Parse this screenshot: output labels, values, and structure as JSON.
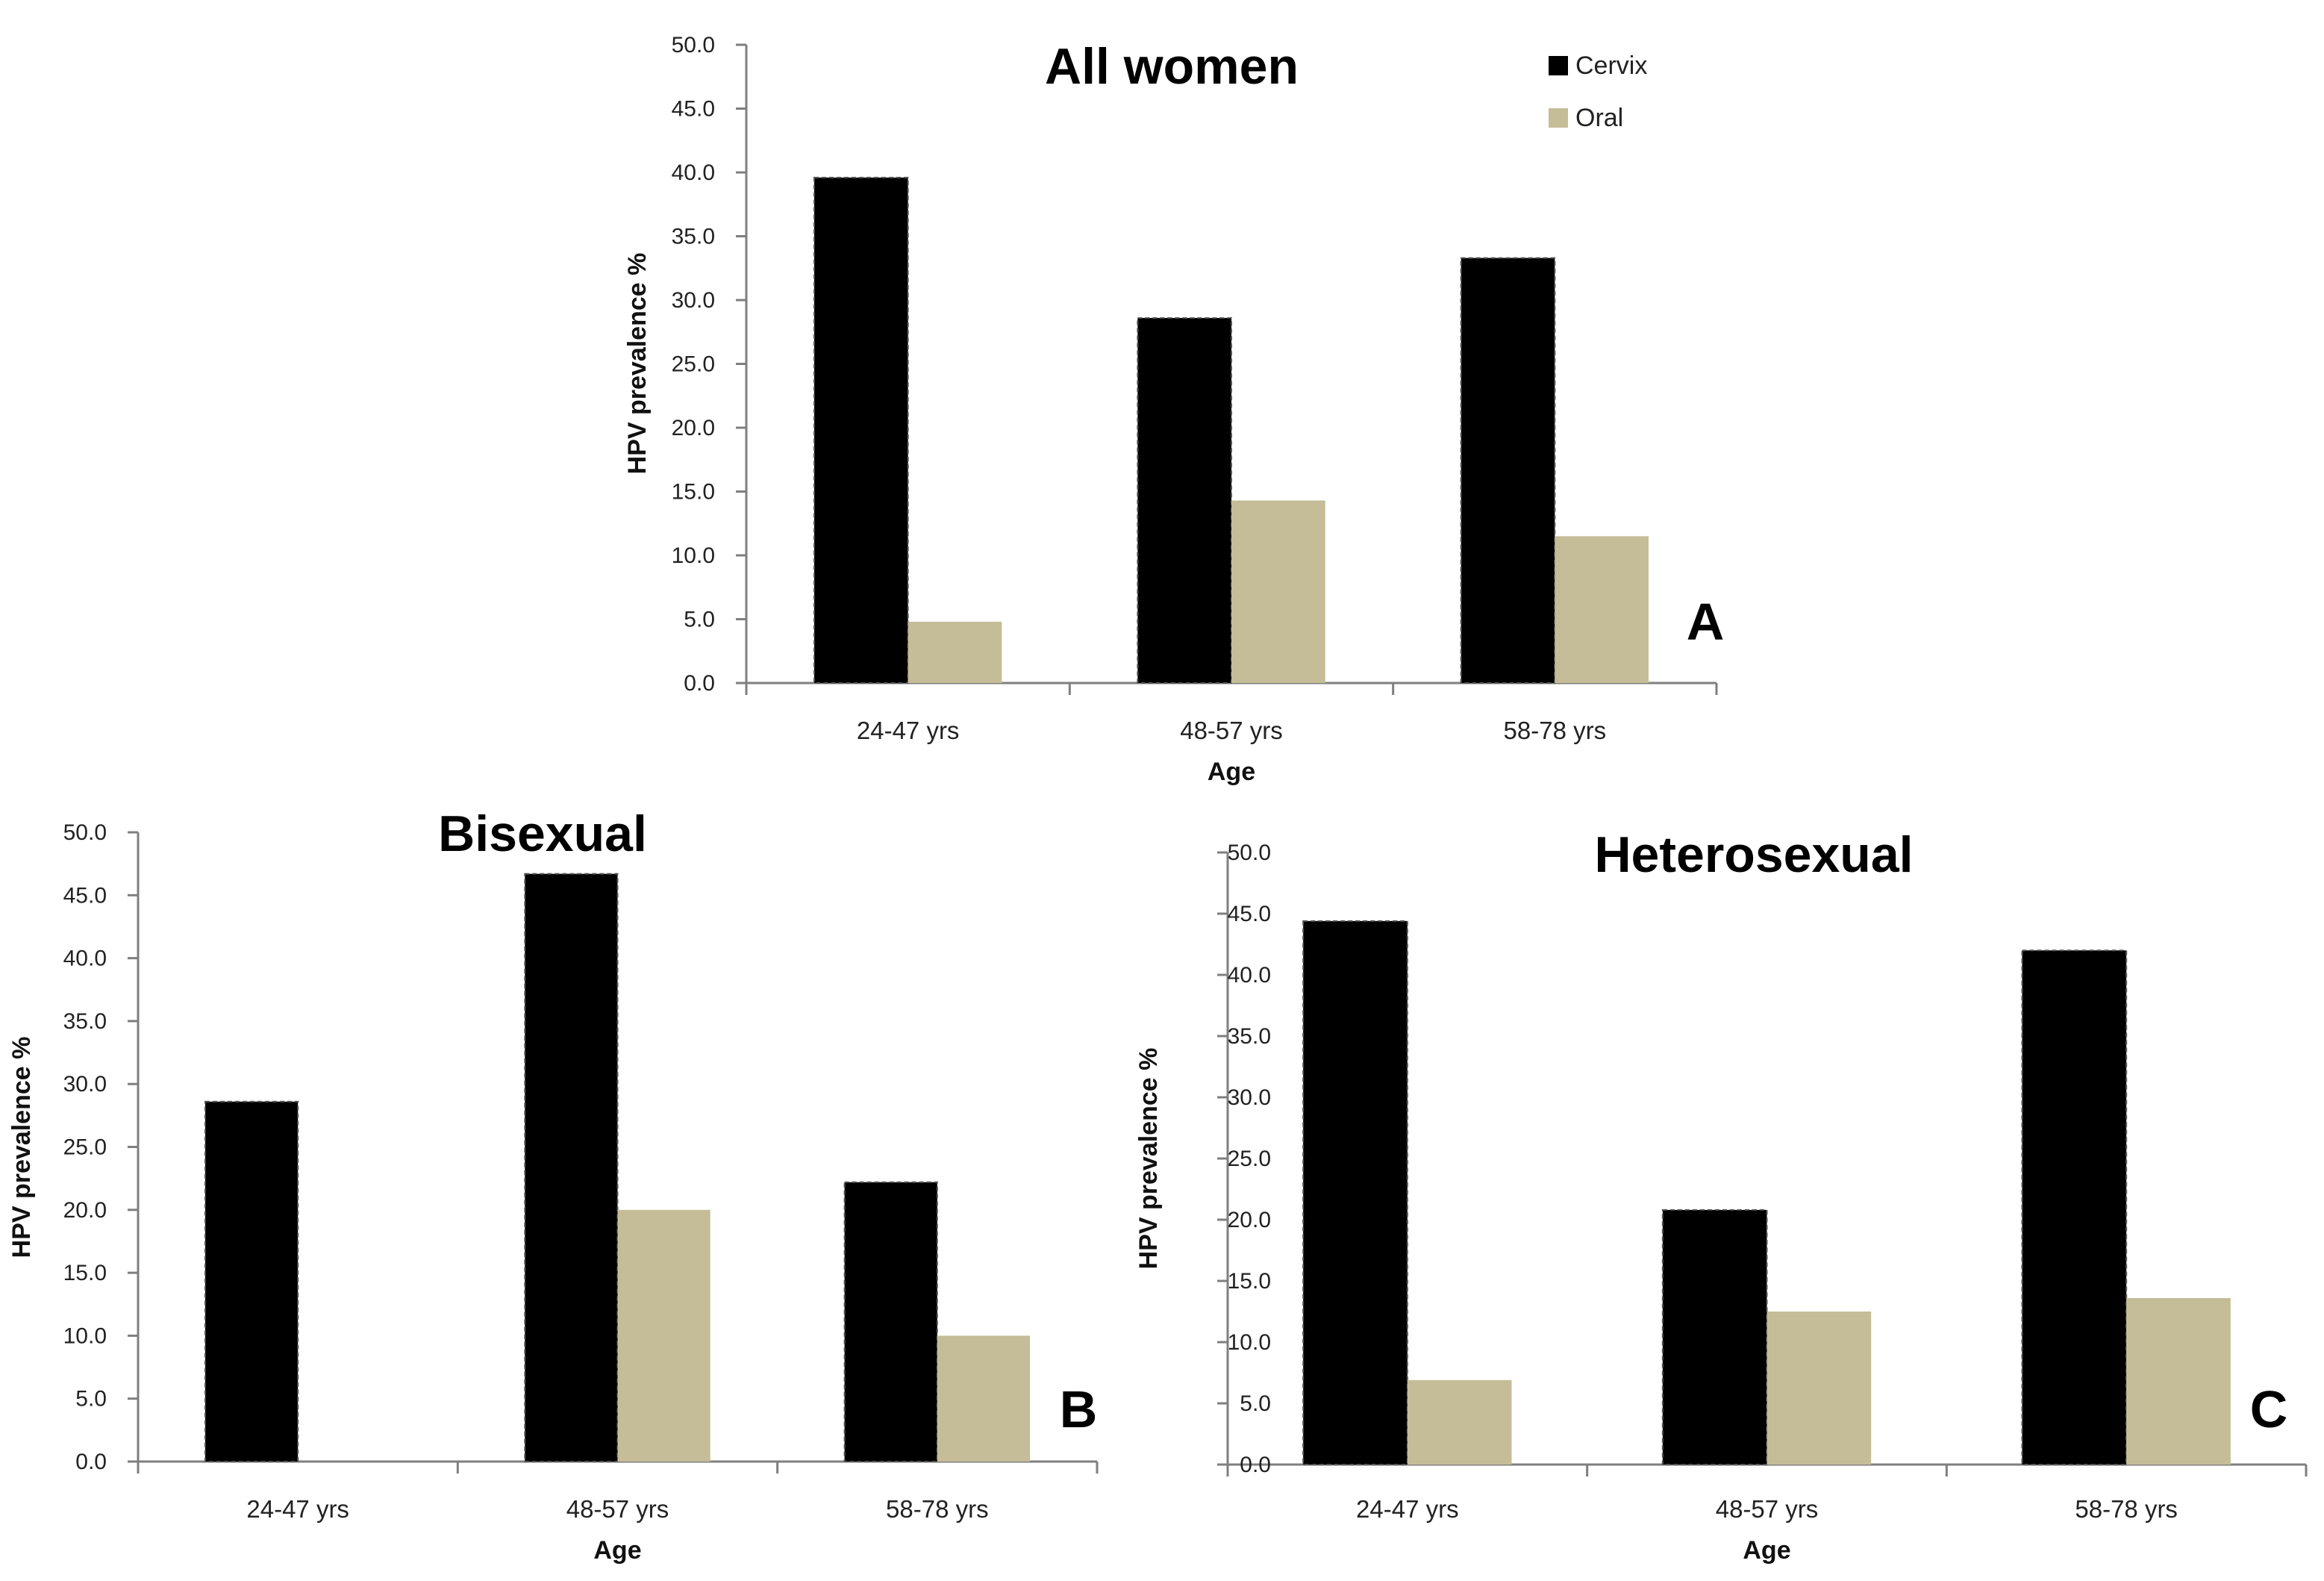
{
  "colors": {
    "cervix": "#000000",
    "oral": "#c4bd97",
    "axis": "#7f7f7f",
    "text": "#222222"
  },
  "legend": {
    "items": [
      {
        "label": "Cervix",
        "color": "#000000"
      },
      {
        "label": "Oral",
        "color": "#c4bd97"
      }
    ]
  },
  "chart_data": [
    {
      "id": "A",
      "type": "bar",
      "title": "All women",
      "panel_letter": "A",
      "xlabel": "Age",
      "ylabel": "HPV prevalence %",
      "categories": [
        "24-47 yrs",
        "48-57 yrs",
        "58-78 yrs"
      ],
      "series": [
        {
          "name": "Cervix",
          "values": [
            39.6,
            28.6,
            33.3
          ]
        },
        {
          "name": "Oral",
          "values": [
            4.8,
            14.3,
            11.5
          ]
        }
      ],
      "ylim": [
        0,
        50
      ],
      "yticks": [
        "0.0",
        "5.0",
        "10.0",
        "15.0",
        "20.0",
        "25.0",
        "30.0",
        "35.0",
        "40.0",
        "45.0",
        "50.0"
      ],
      "legend_position": "top-right"
    },
    {
      "id": "B",
      "type": "bar",
      "title": "Bisexual",
      "panel_letter": "B",
      "xlabel": "Age",
      "ylabel": "HPV prevalence %",
      "categories": [
        "24-47 yrs",
        "48-57 yrs",
        "58-78 yrs"
      ],
      "series": [
        {
          "name": "Cervix",
          "values": [
            28.6,
            46.7,
            22.2
          ]
        },
        {
          "name": "Oral",
          "values": [
            0.0,
            20.0,
            10.0
          ]
        }
      ],
      "ylim": [
        0,
        50
      ],
      "yticks": [
        "0.0",
        "5.0",
        "10.0",
        "15.0",
        "20.0",
        "25.0",
        "30.0",
        "35.0",
        "40.0",
        "45.0",
        "50.0"
      ]
    },
    {
      "id": "C",
      "type": "bar",
      "title": "Heterosexual",
      "panel_letter": "C",
      "xlabel": "Age",
      "ylabel": "HPV prevalence %",
      "categories": [
        "24-47 yrs",
        "48-57 yrs",
        "58-78 yrs"
      ],
      "series": [
        {
          "name": "Cervix",
          "values": [
            44.4,
            20.8,
            42.0
          ]
        },
        {
          "name": "Oral",
          "values": [
            6.9,
            12.5,
            13.6
          ]
        }
      ],
      "ylim": [
        0,
        50
      ],
      "yticks": [
        "0.0",
        "5.0",
        "10.0",
        "15.0",
        "20.0",
        "25.0",
        "30.0",
        "35.0",
        "40.0",
        "45.0",
        "50.0"
      ]
    }
  ]
}
